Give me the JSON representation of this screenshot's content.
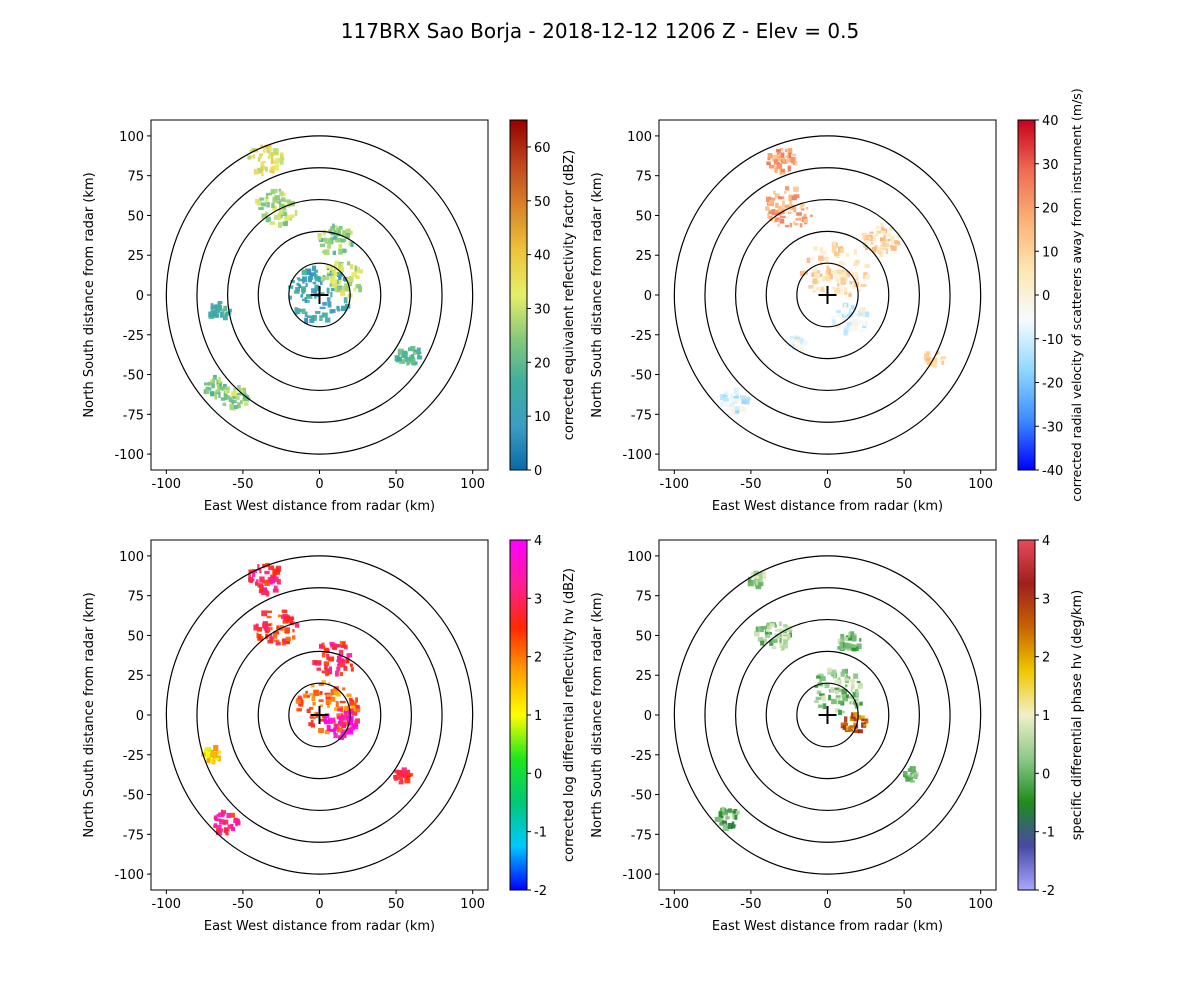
{
  "title": "117BRX Sao Borja - 2018-12-12 1206 Z -  Elev = 0.5",
  "chart_data": [
    {
      "type": "heatmap",
      "xlabel": "East West distance from radar (km)",
      "ylabel": "North South distance from radar (km)",
      "xlim": [
        -110,
        110
      ],
      "ylim": [
        -110,
        110
      ],
      "xticks": [
        -100,
        -50,
        0,
        50,
        100
      ],
      "yticks": [
        -100,
        -75,
        -50,
        -25,
        0,
        25,
        50,
        75,
        100
      ],
      "range_rings_km": [
        20,
        40,
        60,
        80,
        100
      ],
      "colorbar": {
        "label": "corrected equivalent reflectivity factor (dBZ)",
        "range": [
          0,
          65
        ],
        "ticks": [
          0,
          10,
          20,
          30,
          40,
          50,
          60
        ],
        "stops": [
          "#0a6aa8",
          "#3c9dc2",
          "#3fae9e",
          "#86c97a",
          "#e6ee6a",
          "#eec43c",
          "#d9852a",
          "#c0451c",
          "#950000"
        ]
      },
      "echo_regions": [
        {
          "x": 0,
          "y": 0,
          "r": 22,
          "value": 12
        },
        {
          "x": 15,
          "y": 10,
          "r": 14,
          "value": 30
        },
        {
          "x": 10,
          "y": 35,
          "r": 12,
          "value": 24
        },
        {
          "x": -28,
          "y": 55,
          "r": 14,
          "value": 28
        },
        {
          "x": -35,
          "y": 85,
          "r": 12,
          "value": 34
        },
        {
          "x": -55,
          "y": -65,
          "r": 9,
          "value": 26
        },
        {
          "x": -68,
          "y": -58,
          "r": 8,
          "value": 24
        },
        {
          "x": 58,
          "y": -38,
          "r": 8,
          "value": 18
        },
        {
          "x": -65,
          "y": -10,
          "r": 7,
          "value": 16
        }
      ]
    },
    {
      "type": "heatmap",
      "xlabel": "East West distance from radar (km)",
      "ylabel": "North South distance from radar (km)",
      "xlim": [
        -110,
        110
      ],
      "ylim": [
        -110,
        110
      ],
      "xticks": [
        -100,
        -50,
        0,
        50,
        100
      ],
      "yticks": [
        -100,
        -75,
        -50,
        -25,
        0,
        25,
        50,
        75,
        100
      ],
      "range_rings_km": [
        20,
        40,
        60,
        80,
        100
      ],
      "colorbar": {
        "label": "corrected radial velocity of scatterers away from instrument (m/s)",
        "range": [
          -40,
          40
        ],
        "ticks": [
          -40,
          -30,
          -20,
          -10,
          0,
          10,
          20,
          30,
          40
        ],
        "stops": [
          "#0000ff",
          "#3c8cff",
          "#8fd8ff",
          "#f7fbff",
          "#fde7b2",
          "#fbb176",
          "#ef6b52",
          "#c8001e"
        ]
      },
      "echo_regions": [
        {
          "x": 5,
          "y": 15,
          "r": 22,
          "value": 8
        },
        {
          "x": 15,
          "y": -15,
          "r": 12,
          "value": -6
        },
        {
          "x": -25,
          "y": 55,
          "r": 16,
          "value": 18
        },
        {
          "x": -30,
          "y": 85,
          "r": 10,
          "value": 20
        },
        {
          "x": 35,
          "y": 35,
          "r": 12,
          "value": 10
        },
        {
          "x": -60,
          "y": -68,
          "r": 10,
          "value": -9
        },
        {
          "x": 70,
          "y": -40,
          "r": 7,
          "value": 8
        },
        {
          "x": -20,
          "y": -30,
          "r": 6,
          "value": -7
        }
      ]
    },
    {
      "type": "heatmap",
      "xlabel": "East West distance from radar (km)",
      "ylabel": "North South distance from radar (km)",
      "xlim": [
        -110,
        110
      ],
      "ylim": [
        -110,
        110
      ],
      "xticks": [
        -100,
        -50,
        0,
        50,
        100
      ],
      "yticks": [
        -100,
        -75,
        -50,
        -25,
        0,
        25,
        50,
        75,
        100
      ],
      "range_rings_km": [
        20,
        40,
        60,
        80,
        100
      ],
      "colorbar": {
        "label": "corrected log differential reflectivity hv (dBZ)",
        "range": [
          -2,
          4
        ],
        "ticks": [
          -2,
          -1,
          0,
          1,
          2,
          3,
          4
        ],
        "stops": [
          "#0000ff",
          "#00c8ff",
          "#00c878",
          "#1ee61e",
          "#ffff00",
          "#ffa000",
          "#ff2800",
          "#ff1e96",
          "#ff00ff"
        ]
      },
      "echo_regions": [
        {
          "x": 5,
          "y": 5,
          "r": 20,
          "value": 2.2
        },
        {
          "x": 15,
          "y": -5,
          "r": 12,
          "value": 3.6
        },
        {
          "x": 10,
          "y": 35,
          "r": 14,
          "value": 2.8
        },
        {
          "x": -28,
          "y": 55,
          "r": 14,
          "value": 2.5
        },
        {
          "x": -35,
          "y": 85,
          "r": 12,
          "value": 2.9
        },
        {
          "x": -62,
          "y": -68,
          "r": 9,
          "value": 3.0
        },
        {
          "x": 55,
          "y": -38,
          "r": 6,
          "value": 2.7
        },
        {
          "x": -70,
          "y": -25,
          "r": 6,
          "value": 1.3
        }
      ]
    },
    {
      "type": "heatmap",
      "xlabel": "East West distance from radar (km)",
      "ylabel": "North South distance from radar (km)",
      "xlim": [
        -110,
        110
      ],
      "ylim": [
        -110,
        110
      ],
      "xticks": [
        -100,
        -50,
        0,
        50,
        100
      ],
      "yticks": [
        -100,
        -75,
        -50,
        -25,
        0,
        25,
        50,
        75,
        100
      ],
      "range_rings_km": [
        20,
        40,
        60,
        80,
        100
      ],
      "colorbar": {
        "label": "specific differential phase hv (deg/km)",
        "range": [
          -2,
          4
        ],
        "ticks": [
          -2,
          -1,
          0,
          1,
          2,
          3,
          4
        ],
        "stops": [
          "#a8a8ff",
          "#4848a8",
          "#1e8c1e",
          "#8cc88c",
          "#f0f0c8",
          "#f0c800",
          "#c86400",
          "#a01e1e",
          "#e84a5a"
        ]
      },
      "echo_regions": [
        {
          "x": 8,
          "y": 15,
          "r": 18,
          "value": 0.2
        },
        {
          "x": 18,
          "y": -5,
          "r": 8,
          "value": 2.6
        },
        {
          "x": -35,
          "y": 50,
          "r": 12,
          "value": 0.3
        },
        {
          "x": 15,
          "y": 45,
          "r": 8,
          "value": 0.1
        },
        {
          "x": -65,
          "y": -65,
          "r": 8,
          "value": -0.2
        },
        {
          "x": -45,
          "y": 85,
          "r": 6,
          "value": 0.5
        },
        {
          "x": 55,
          "y": -38,
          "r": 5,
          "value": -0.1
        }
      ]
    }
  ]
}
